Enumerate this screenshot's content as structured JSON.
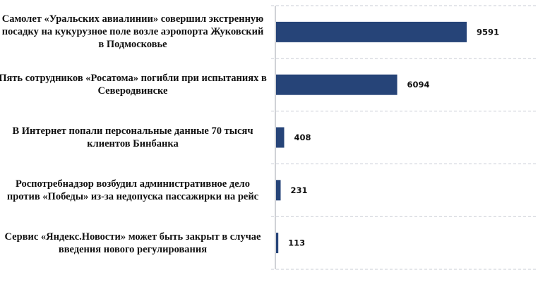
{
  "chart_data": {
    "type": "bar",
    "orientation": "horizontal",
    "categories": [
      "Самолет «Уральских авиалинии» совершил экстренную посадку на кукурузное поле возле аэропорта Жуковский в Подмосковье",
      "Пять сотрудников «Росатома» погибли при испытаниях в Северодвинске",
      "В Интернет попали персональные данные 70 тысяч клиентов Бинбанка",
      "Роспотребнадзор возбудил административное дело против «Победы» из-за недопуска пассажирки на рейс",
      "Сервис «Яндекс.Новости» может быть закрыт в случае введения нового регулирования"
    ],
    "values": [
      9591,
      6094,
      408,
      231,
      113
    ],
    "data_labels": [
      "9591",
      "6094",
      "408",
      "231",
      "113"
    ],
    "xlim": [
      0,
      10000
    ],
    "grid": "dashed horizontal separators",
    "bar_color": "#264478"
  }
}
